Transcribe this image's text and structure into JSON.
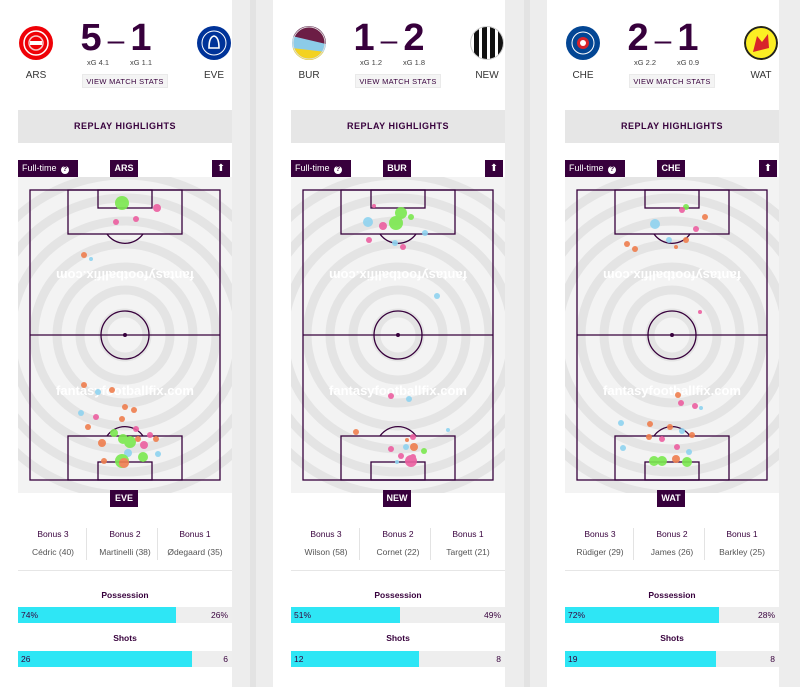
{
  "cards": [
    {
      "home": {
        "abbr": "ARS",
        "xg": "xG 4.1",
        "crest_color": "#ef0107",
        "icon": "cannon-crest-icon"
      },
      "away": {
        "abbr": "EVE",
        "xg": "xG 1.1",
        "crest_color": "#003399",
        "icon": "tower-crest-icon"
      },
      "score": {
        "home": "5",
        "away": "1"
      },
      "view_stats": "VIEW MATCH STATS",
      "replay": "REPLAY HIGHLIGHTS",
      "fulltime": "Full-time",
      "watermark": "fantasyfootballfix.com",
      "bonus": {
        "h3": "Bonus 3",
        "h2": "Bonus 2",
        "h1": "Bonus 1",
        "p3": "Cédric (40)",
        "p2": "Martinelli (38)",
        "p1": "Ødegaard (35)"
      },
      "possession": {
        "label": "Possession",
        "home": "74%",
        "away": "26%",
        "home_pct": 74
      },
      "shots": {
        "label": "Shots",
        "home": "26",
        "away": "6",
        "home_pct": 81.25
      }
    },
    {
      "home": {
        "abbr": "BUR",
        "xg": "xG 1.2",
        "crest_color": "#6c1d45",
        "icon": "burnley-crest-icon"
      },
      "away": {
        "abbr": "NEW",
        "xg": "xG 1.8",
        "crest_color": "#111111",
        "icon": "newcastle-crest-icon"
      },
      "score": {
        "home": "1",
        "away": "2"
      },
      "view_stats": "VIEW MATCH STATS",
      "replay": "REPLAY HIGHLIGHTS",
      "fulltime": "Full-time",
      "watermark": "fantasyfootballfix.com",
      "bonus": {
        "h3": "Bonus 3",
        "h2": "Bonus 2",
        "h1": "Bonus 1",
        "p3": "Wilson (58)",
        "p2": "Cornet (22)",
        "p1": "Targett (21)"
      },
      "possession": {
        "label": "Possession",
        "home": "51%",
        "away": "49%",
        "home_pct": 51
      },
      "shots": {
        "label": "Shots",
        "home": "12",
        "away": "8",
        "home_pct": 60
      }
    },
    {
      "home": {
        "abbr": "CHE",
        "xg": "xG 2.2",
        "crest_color": "#034694",
        "icon": "lion-crest-icon"
      },
      "away": {
        "abbr": "WAT",
        "xg": "xG 0.9",
        "crest_color": "#fbee23",
        "icon": "hornet-crest-icon"
      },
      "score": {
        "home": "2",
        "away": "1"
      },
      "view_stats": "VIEW MATCH STATS",
      "replay": "REPLAY HIGHLIGHTS",
      "fulltime": "Full-time",
      "watermark": "fantasyfootballfix.com",
      "bonus": {
        "h3": "Bonus 3",
        "h2": "Bonus 2",
        "h1": "Bonus 1",
        "p3": "Rüdiger (29)",
        "p2": "James (26)",
        "p1": "Barkley (25)"
      },
      "possession": {
        "label": "Possession",
        "home": "72%",
        "away": "28%",
        "home_pct": 72
      },
      "shots": {
        "label": "Shots",
        "home": "19",
        "away": "8",
        "home_pct": 70.4
      }
    }
  ],
  "colors": {
    "brand": "#37003c",
    "bar": "#2ee6f5",
    "goal": "#7be84f",
    "shot_light_blue": "#8fd3f0",
    "shot_pink": "#ec5fa0",
    "shot_orange": "#ef7e4e"
  }
}
